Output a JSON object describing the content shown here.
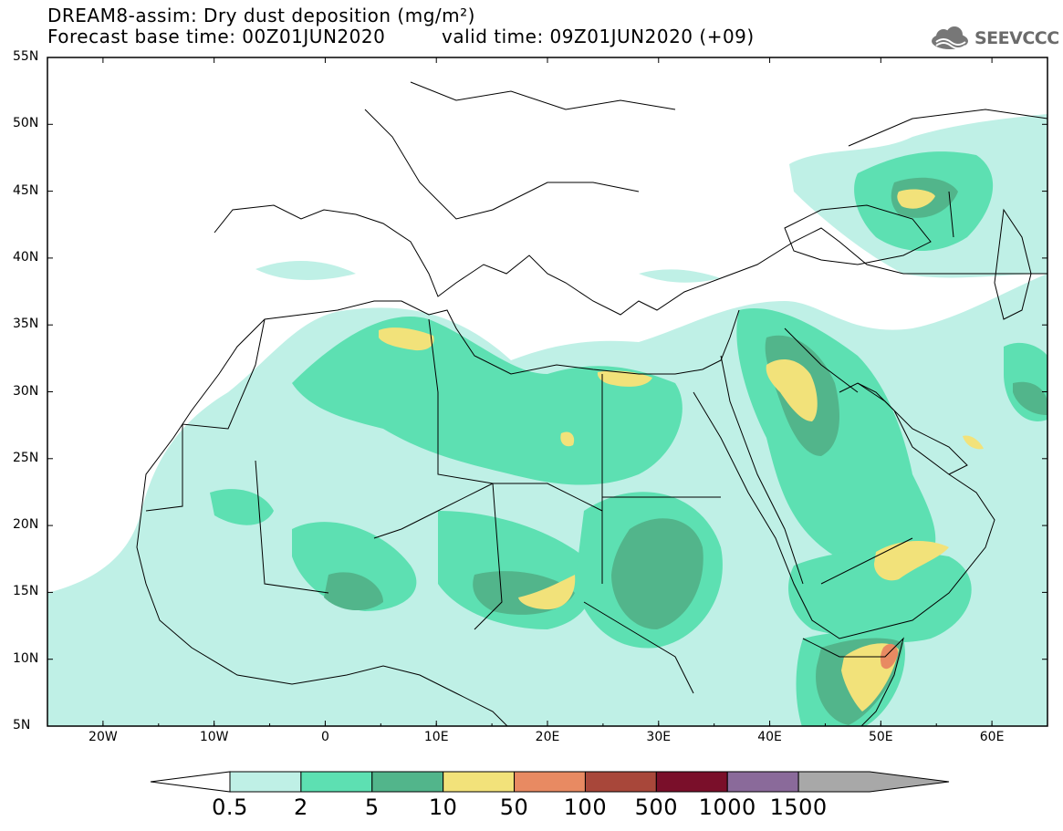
{
  "title": {
    "line1": "DREAM8-assim: Dry dust deposition (mg/m²)",
    "line2_left": "Forecast base time: 00Z01JUN2020",
    "line2_right": "valid time: 09Z01JUN2020 (+09)"
  },
  "logo": {
    "text": "SEEVCCC",
    "icon": "cloud-logo-icon"
  },
  "axes": {
    "lat_labels": [
      "55N",
      "50N",
      "45N",
      "40N",
      "35N",
      "30N",
      "25N",
      "20N",
      "15N",
      "10N",
      "5N"
    ],
    "lon_labels": [
      "20W",
      "10W",
      "0",
      "10E",
      "20E",
      "30E",
      "40E",
      "50E",
      "60E"
    ]
  },
  "colorbar": {
    "labels": [
      "0.5",
      "2",
      "5",
      "10",
      "50",
      "100",
      "500",
      "1000",
      "1500"
    ],
    "colors": [
      "#bff0e6",
      "#5de0b2",
      "#52b58b",
      "#f2e27a",
      "#e88a62",
      "#a8473a",
      "#7a0f2a",
      "#8a6a9a",
      "#a8a8a8"
    ]
  },
  "map": {
    "lon_range": [
      -25,
      65
    ],
    "lat_range": [
      5,
      55
    ],
    "land_color": "#ffffff",
    "coast_color": "#000000"
  }
}
